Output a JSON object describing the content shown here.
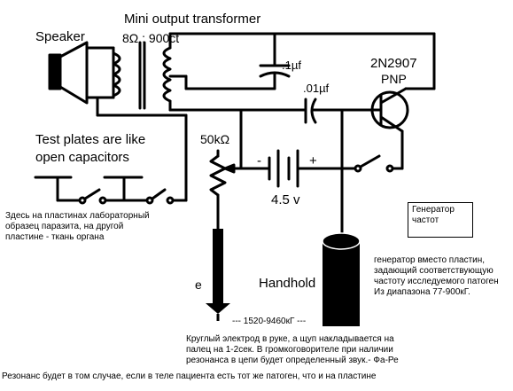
{
  "labels": {
    "speaker": "Speaker",
    "transformer_title": "Mini output transformer",
    "transformer_spec": "8Ω : 900ct",
    "cap1": ".1µf",
    "cap2": ".01µf",
    "transistor": "2N2907",
    "transistor_type": "PNP",
    "test_plates_line1": "Test plates are like",
    "test_plates_line2": "open capacitors",
    "resistor": "50kΩ",
    "battery_minus": "-",
    "battery_plus": "+",
    "battery": "4.5 v",
    "probe_mark": "e",
    "handhold": "Handhold"
  },
  "notes": {
    "plates": [
      "Здесь на пластинах лабораторный",
      "образец паразита, на другой",
      "пластине - ткань органа"
    ],
    "generator_box": [
      "Генератор",
      "частот"
    ],
    "generator": [
      "генератор вместо пластин,",
      "задающий соответствующую",
      "частоту исследуемого патоген",
      "Из диапазона 77-900кГ."
    ],
    "range": "--- 1520-9460кГ ---",
    "electrode": [
      "Круглый электрод в руке, а щуп накладывается на",
      "палец на 1-2сек. В громкоговорителе при наличии",
      "резонанса в цепи будет определенный звук.- Фа-Ре"
    ],
    "resonance": "Резонанс будет в том случае, если в теле пациента есть тот же патоген, что и на пластине"
  }
}
